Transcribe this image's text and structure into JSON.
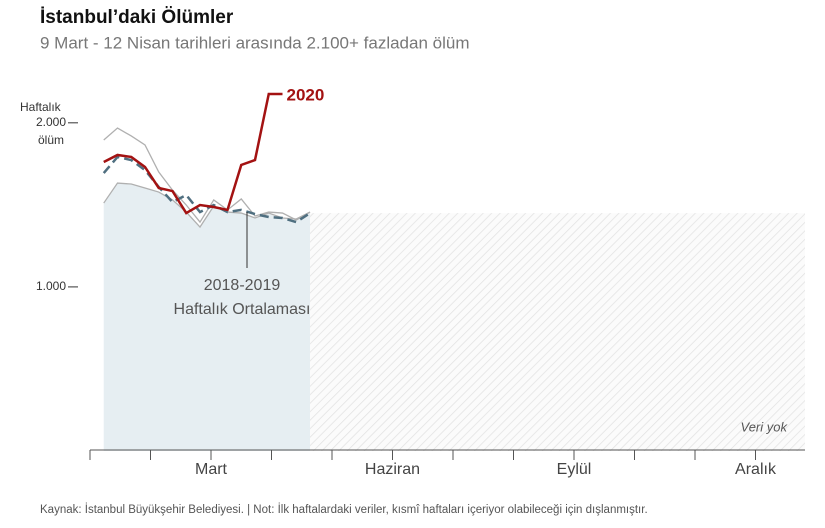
{
  "chart_data": {
    "type": "line",
    "title": "İstanbul’daki Ölümler",
    "subtitle": "9 Mart - 12 Nisan tarihleri arasında 2.100+ fazladan ölüm",
    "y_label": [
      "Haftalık",
      "ölüm"
    ],
    "ylim": [
      0,
      2200
    ],
    "yticks": [
      {
        "value": 2000,
        "label": "2.000"
      },
      {
        "value": 1000,
        "label": "1.000"
      }
    ],
    "xlim": [
      0,
      52
    ],
    "xticks": [
      0,
      {
        "value": 4.4,
        "label": ""
      },
      {
        "value": 8.8,
        "label": "Mart"
      },
      13.2,
      17.6,
      {
        "value": 22,
        "label": "Haziran"
      },
      26.4,
      30.8,
      {
        "value": 35.2,
        "label": "Eylül"
      },
      39.6,
      44,
      {
        "value": 48.4,
        "label": "Aralık"
      }
    ],
    "x": [
      1,
      2,
      3,
      4,
      5,
      6,
      7,
      8,
      9,
      10,
      11,
      12,
      13,
      14,
      15,
      16
    ],
    "series": [
      {
        "color": "#b0b0b0",
        "values": [
          1895,
          1968,
          1920,
          1865,
          1700,
          1590,
          1499,
          1395,
          1530,
          1469,
          1536,
          1432,
          1456,
          1450,
          1408,
          1456
        ]
      },
      {
        "color": "#b0b0b0",
        "values": [
          1511,
          1633,
          1627,
          1603,
          1578,
          1530,
          1456,
          1365,
          1493,
          1456,
          1450,
          1420,
          1450,
          1420,
          1414,
          1456
        ]
      },
      {
        "color": "#4f6f80",
        "dashed": true,
        "values": [
          1694,
          1792,
          1773,
          1712,
          1609,
          1517,
          1560,
          1456,
          1499,
          1456,
          1469,
          1444,
          1426,
          1420,
          1395,
          1450
        ]
      },
      {
        "name": "2020",
        "color": "#a31212",
        "values": [
          1761,
          1804,
          1792,
          1731,
          1603,
          1584,
          1450,
          1499,
          1487,
          1469,
          1743,
          1773,
          2176,
          2176,
          null,
          null
        ]
      }
    ],
    "annotation": [
      "2018-2019",
      "Haftalık Ortalaması"
    ],
    "no_data_label": "Veri yok",
    "source": "Kaynak: İstanbul Büyükşehir Belediyesi.  |  Not: İlk haftalardaki veriler, kısmî haftaları içeriyor olabileceği için dışlanmıştır."
  }
}
